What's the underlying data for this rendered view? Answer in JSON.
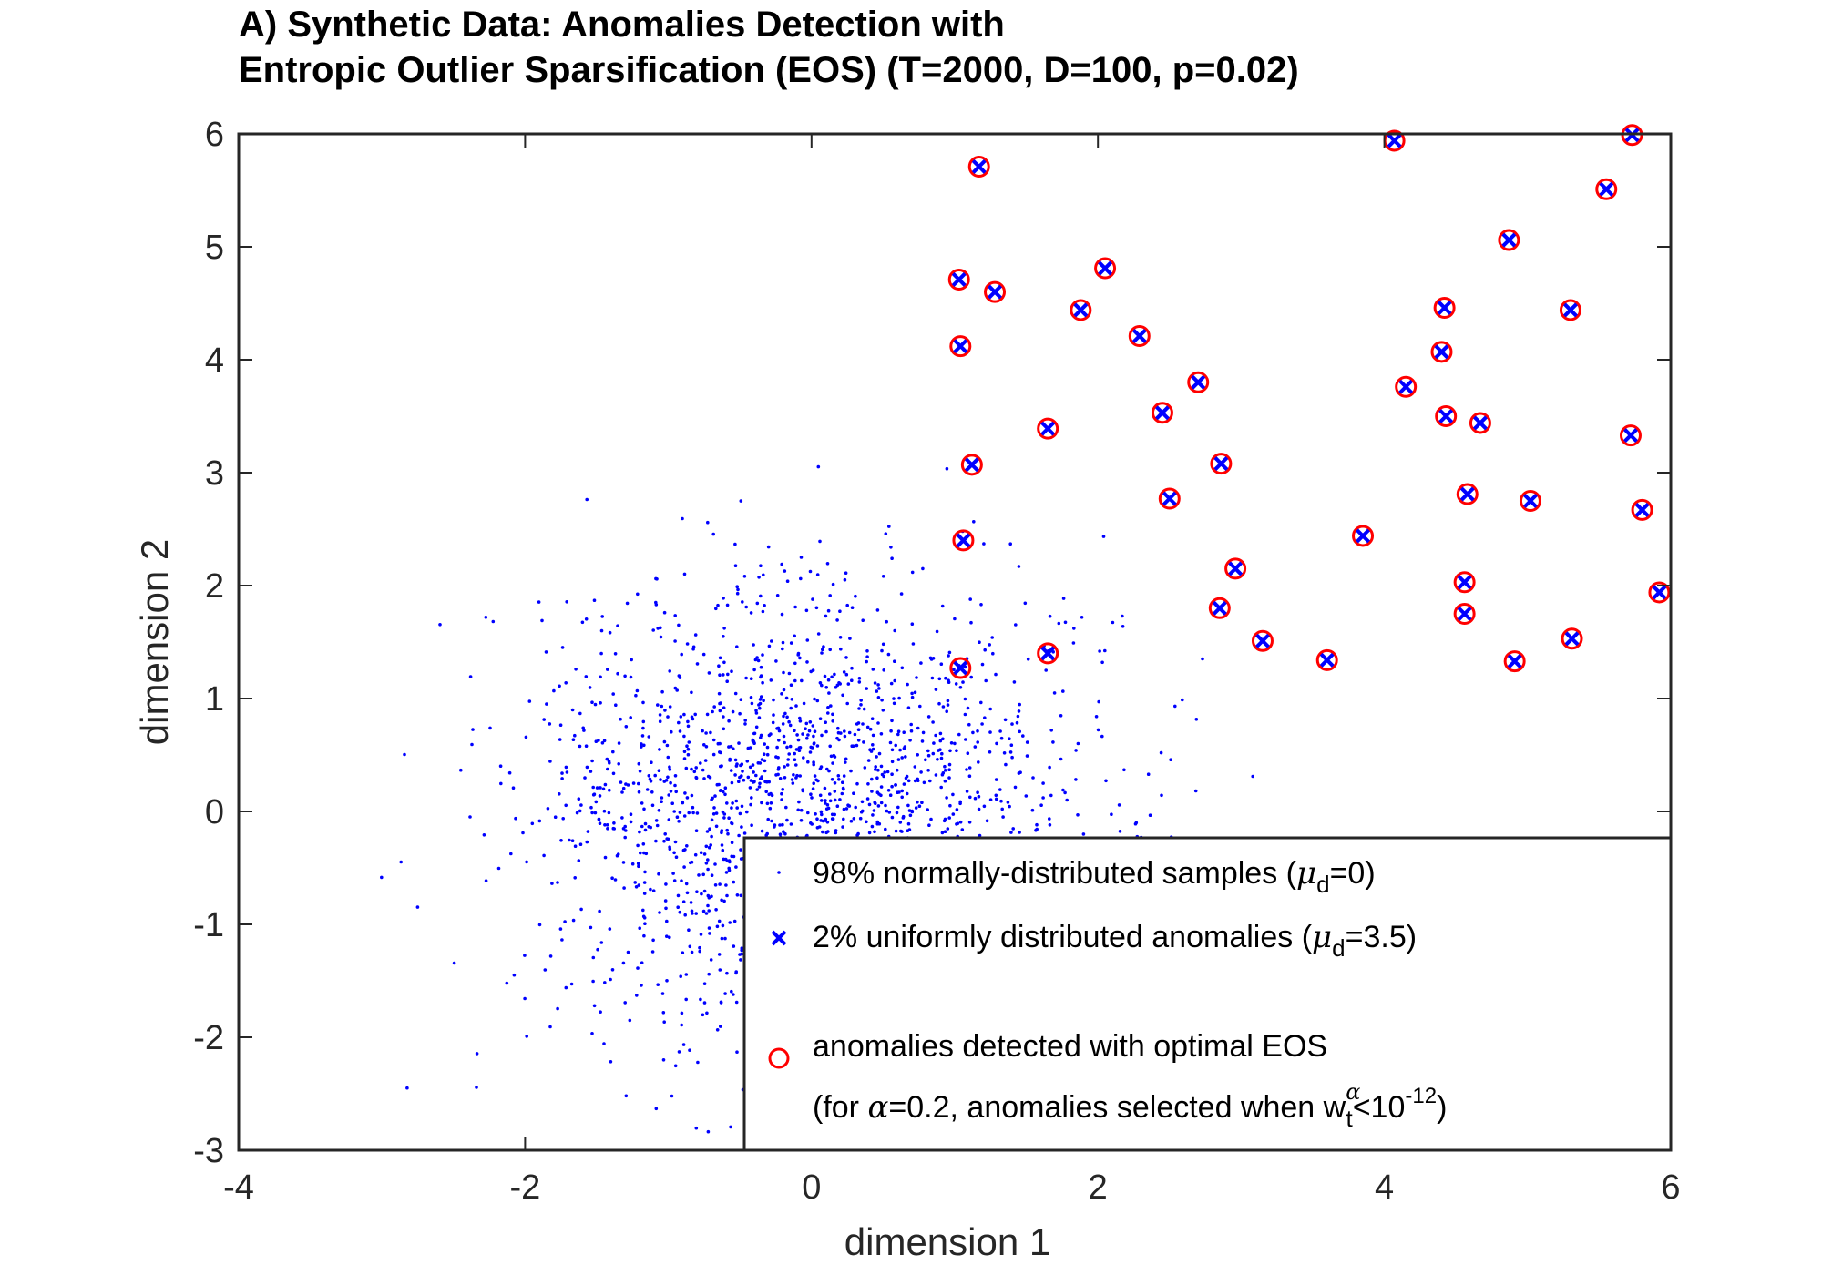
{
  "chart_data": {
    "type": "scatter",
    "title_line1": "A) Synthetic Data: Anomalies Detection with",
    "title_line2": "Entropic Outlier Sparsification (EOS) (T=2000, D=100, p=0.02)",
    "xlabel": "dimension 1",
    "ylabel": "dimension 2",
    "xlim": [
      -4,
      6
    ],
    "ylim": [
      -3,
      6
    ],
    "x_ticks": [
      -4,
      -2,
      0,
      2,
      4,
      6
    ],
    "y_ticks": [
      -3,
      -2,
      -1,
      0,
      1,
      2,
      3,
      4,
      5,
      6
    ],
    "grid": false,
    "legend_position": "bottom-right",
    "colors": {
      "normal": "#0000ff",
      "anomaly": "#0000ff",
      "detected": "#ff0000",
      "axis": "#262626"
    },
    "normal_distribution": {
      "n": 1960,
      "mean": [
        0,
        0
      ],
      "std": [
        1,
        1
      ],
      "seed": 7
    },
    "anomalies": {
      "x": [
        1.17,
        1.03,
        1.28,
        1.04,
        1.12,
        1.06,
        1.04,
        1.65,
        1.65,
        1.88,
        2.05,
        2.29,
        2.45,
        2.5,
        2.7,
        2.86,
        2.96,
        2.85,
        3.15,
        3.6,
        3.85,
        4.07,
        4.15,
        4.42,
        4.4,
        4.43,
        4.67,
        4.58,
        4.56,
        4.56,
        4.87,
        4.91,
        5.02,
        5.3,
        5.31,
        5.55,
        5.72,
        5.73,
        5.8,
        5.92
      ],
      "y": [
        5.71,
        4.71,
        4.6,
        4.12,
        3.07,
        2.4,
        1.27,
        3.39,
        1.4,
        4.44,
        4.81,
        4.21,
        3.53,
        2.77,
        3.8,
        3.08,
        2.15,
        1.8,
        1.51,
        1.34,
        2.44,
        5.94,
        3.76,
        4.46,
        4.07,
        3.5,
        3.44,
        2.81,
        2.03,
        1.75,
        5.06,
        1.33,
        2.75,
        4.44,
        1.53,
        5.51,
        3.33,
        5.99,
        2.67,
        1.94
      ]
    },
    "legend": {
      "normal": "98% normally-distributed samples (",
      "normal_mu": "μ",
      "normal_sub": "d",
      "normal_end": "=0)",
      "anomaly": "2% uniformly distributed anomalies (",
      "anomaly_mu": "μ",
      "anomaly_sub": "d",
      "anomaly_end": "=3.5)",
      "detected_line1": "anomalies detected with optimal EOS",
      "detected_line2_a": "(for ",
      "detected_alpha": "α",
      "detected_line2_b": "=0.2, anomalies  selected when w",
      "detected_sub": "t",
      "detected_sup": "α",
      "detected_line2_c": "<10",
      "detected_exp": "-12",
      "detected_line2_d": ")"
    }
  }
}
